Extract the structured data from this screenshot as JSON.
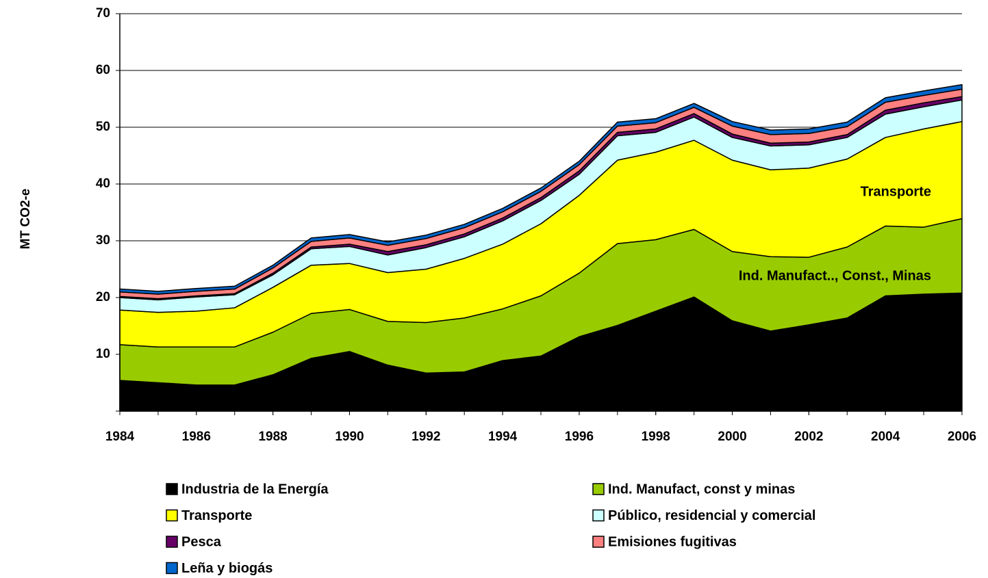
{
  "chart_data": {
    "type": "stacked-area",
    "y_label": "MT CO2-e",
    "x": [
      1984,
      1985,
      1986,
      1987,
      1988,
      1989,
      1990,
      1991,
      1992,
      1993,
      1994,
      1995,
      1996,
      1997,
      1998,
      1999,
      2000,
      2001,
      2002,
      2003,
      2004,
      2005,
      2006
    ],
    "xlim": [
      1984,
      2006
    ],
    "xticks": [
      1984,
      1986,
      1988,
      1990,
      1992,
      1994,
      1996,
      1998,
      2000,
      2002,
      2004,
      2006
    ],
    "ylim": [
      0,
      70
    ],
    "yticks": [
      10,
      20,
      30,
      40,
      50,
      60,
      70
    ],
    "grid": true,
    "series": [
      {
        "name": "Industria de la Energía",
        "color": "#000000",
        "values": [
          5.4,
          5.0,
          4.6,
          4.6,
          6.4,
          9.3,
          10.5,
          8.1,
          6.7,
          6.9,
          8.9,
          9.7,
          13.1,
          15.1,
          17.6,
          20.1,
          15.9,
          14.1,
          15.2,
          16.4,
          20.3,
          20.6,
          20.8
        ]
      },
      {
        "name": "Ind. Manufact, const y minas",
        "color": "#99cc00",
        "values": [
          6.3,
          6.3,
          6.7,
          6.7,
          7.5,
          7.9,
          7.4,
          7.7,
          8.9,
          9.5,
          9.1,
          10.6,
          11.2,
          14.4,
          12.6,
          11.9,
          12.2,
          13.1,
          11.9,
          12.5,
          12.3,
          11.8,
          13.1
        ]
      },
      {
        "name": "Transporte",
        "color": "#ffff00",
        "values": [
          6.1,
          6.1,
          6.3,
          6.9,
          7.9,
          8.5,
          8.1,
          8.6,
          9.4,
          10.5,
          11.4,
          12.7,
          13.7,
          14.7,
          15.4,
          15.7,
          16.1,
          15.3,
          15.7,
          15.5,
          15.6,
          17.3,
          17.1
        ]
      },
      {
        "name": "Público, residencial y comercial",
        "color": "#ccffff",
        "values": [
          2.2,
          2.2,
          2.5,
          2.3,
          2.2,
          2.9,
          3.0,
          3.1,
          3.8,
          3.8,
          4.1,
          4.1,
          3.7,
          4.3,
          3.5,
          4.1,
          4.0,
          4.2,
          4.1,
          3.8,
          4.1,
          3.9,
          3.8
        ]
      },
      {
        "name": "Pesca",
        "color": "#660066",
        "values": [
          0.2,
          0.2,
          0.2,
          0.2,
          0.3,
          0.3,
          0.4,
          0.6,
          0.5,
          0.5,
          0.5,
          0.5,
          0.6,
          0.6,
          0.6,
          0.6,
          0.6,
          0.5,
          0.5,
          0.5,
          0.7,
          0.7,
          0.6
        ]
      },
      {
        "name": "Emisiones fugitivas",
        "color": "#ff8080",
        "values": [
          0.8,
          0.8,
          0.8,
          0.8,
          0.9,
          1.0,
          1.1,
          1.1,
          1.1,
          1.1,
          1.1,
          1.1,
          1.1,
          1.1,
          1.1,
          1.1,
          1.4,
          1.5,
          1.5,
          1.4,
          1.4,
          1.3,
          1.3
        ]
      },
      {
        "name": "Leña y biogás",
        "color": "#0066cc",
        "values": [
          0.5,
          0.5,
          0.5,
          0.5,
          0.5,
          0.6,
          0.6,
          0.6,
          0.6,
          0.6,
          0.6,
          0.6,
          0.6,
          0.7,
          0.7,
          0.7,
          0.8,
          0.8,
          0.8,
          0.8,
          0.8,
          0.8,
          0.8
        ]
      }
    ],
    "annotations": [
      {
        "text": "Transporte",
        "color": "#993300"
      },
      {
        "text": "Ind. Manufact.., Const., Minas",
        "color": "#4f7a28"
      },
      {
        "text": "Industria de la Energía",
        "color": "#c0c0c0"
      }
    ]
  }
}
